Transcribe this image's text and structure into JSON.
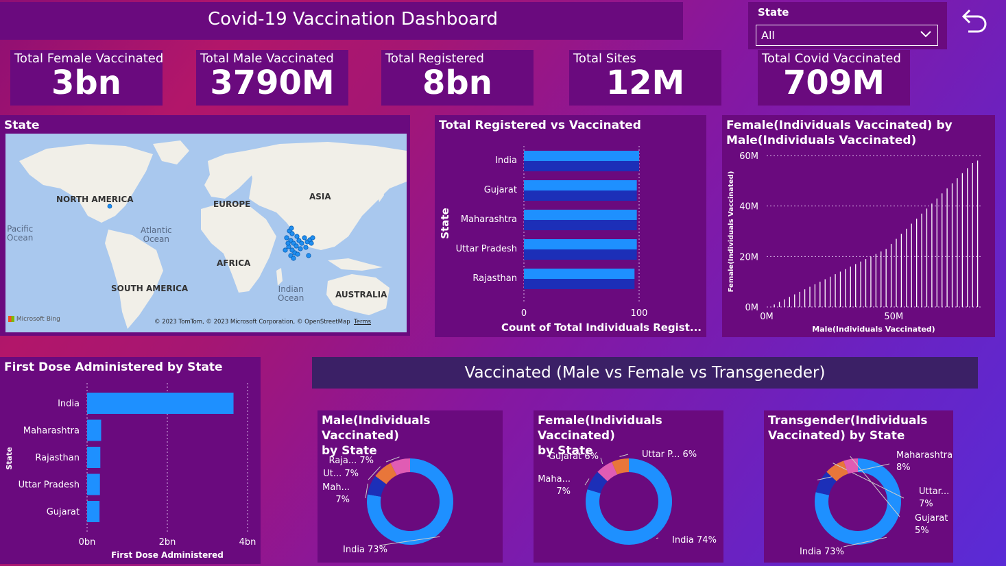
{
  "header": {
    "title": "Covid-19 Vaccination Dashboard"
  },
  "slicer": {
    "label": "State",
    "value": "All"
  },
  "kpis": [
    {
      "label": "Total Female Vaccinated",
      "value": "3bn"
    },
    {
      "label": "Total Male Vaccinated",
      "value": "3790M"
    },
    {
      "label": "Total Registered",
      "value": "8bn"
    },
    {
      "label": "Total Sites",
      "value": "12M"
    },
    {
      "label": "Total Covid Vaccinated",
      "value": "709M"
    }
  ],
  "map": {
    "title": "State",
    "labels": {
      "north_america": "NORTH AMERICA",
      "europe": "EUROPE",
      "asia": "ASIA",
      "africa": "AFRICA",
      "south_america": "SOUTH AMERICA",
      "australia": "AUSTRALIA"
    },
    "oceans": {
      "pacific_1": "Pacific",
      "pacific_2": "Ocean",
      "atlantic_1": "Atlantic",
      "atlantic_2": "Ocean",
      "indian_1": "Indian",
      "indian_2": "Ocean"
    },
    "brand": "Microsoft Bing",
    "copyright": "© 2023 TomTom, © 2023 Microsoft Corporation, © OpenStreetMap",
    "terms": "Terms",
    "colors": {
      "water": "#a9c8ee",
      "land": "#f1efe8",
      "marker": "#1f8ef0"
    }
  },
  "chart_data": [
    {
      "id": "registered_vs_vaccinated",
      "type": "bar",
      "orientation": "horizontal",
      "title": "Total Registered vs Vaccinated",
      "ylabel": "State",
      "xlabel": "Count of Total Individuals Regist...",
      "categories": [
        "India",
        "Gujarat",
        "Maharashtra",
        "Uttar Pradesh",
        "Rajasthan"
      ],
      "series": [
        {
          "values": [
            100,
            98,
            98,
            98,
            96
          ],
          "color": "#1e90ff"
        },
        {
          "values": [
            100,
            98,
            98,
            98,
            96
          ],
          "color": "#1c2fb8"
        }
      ],
      "xlim": [
        0,
        100
      ],
      "xticks": [
        "0",
        "100"
      ]
    },
    {
      "id": "female_by_male",
      "type": "scatter",
      "title_line1": "Female(Individuals Vaccinated) by",
      "title_line2": "Male(Individuals Vaccinated)",
      "xlabel": "Male(Individuals Vaccinated)",
      "ylabel": "Female(Individuals Vaccinated)",
      "xticks": [
        "0M",
        "50M"
      ],
      "yticks": [
        "0M",
        "20M",
        "40M",
        "60M"
      ],
      "xlim": [
        0,
        85
      ],
      "ylim": [
        0,
        60
      ],
      "x": [
        3,
        5,
        7,
        9,
        11,
        13,
        15,
        17,
        19,
        21,
        23,
        25,
        27,
        29,
        31,
        33,
        35,
        37,
        39,
        41,
        43,
        45,
        47,
        49,
        51,
        53,
        55,
        57,
        59,
        61,
        63,
        65,
        67,
        69,
        71,
        73,
        75,
        77,
        79,
        81,
        83
      ],
      "y": [
        1,
        2,
        3,
        4,
        5,
        6,
        7,
        8,
        9,
        10,
        11,
        12,
        13,
        14,
        15,
        16,
        17,
        18,
        19,
        20,
        21,
        22,
        23,
        25,
        27,
        29,
        31,
        33,
        35,
        37,
        39,
        41,
        43,
        45,
        47,
        49,
        51,
        53,
        55,
        57,
        58
      ]
    },
    {
      "id": "first_dose_by_state",
      "type": "bar",
      "orientation": "horizontal",
      "title": "First Dose Administered by State",
      "ylabel": "State",
      "xlabel": "First Dose Administered",
      "categories": [
        "India",
        "Maharashtra",
        "Rajasthan",
        "Uttar Pradesh",
        "Gujarat"
      ],
      "values": [
        3.65,
        0.35,
        0.33,
        0.32,
        0.31
      ],
      "units": "bn",
      "xlim": [
        0,
        4
      ],
      "xticks": [
        "0bn",
        "2bn",
        "4bn"
      ],
      "color": "#1e90ff"
    },
    {
      "id": "male_by_state",
      "type": "pie",
      "donut": true,
      "title_line1": "Male(Individuals Vaccinated)",
      "title_line2": "by State",
      "slices": [
        {
          "label": "India 73%",
          "value": 73,
          "color": "#1e90ff"
        },
        {
          "label": "Mah... 7%",
          "value": 7,
          "color": "#1c2fb8"
        },
        {
          "label": "Ut... 7%",
          "value": 7,
          "color": "#e8763a"
        },
        {
          "label": "Raja... 7%",
          "value": 7,
          "color": "#e05cb4"
        }
      ]
    },
    {
      "id": "female_by_state",
      "type": "pie",
      "donut": true,
      "title_line1": "Female(Individuals Vaccinated)",
      "title_line2": "by State",
      "slices": [
        {
          "label": "India 74%",
          "value": 74,
          "color": "#1e90ff"
        },
        {
          "label": "Maha... 7%",
          "value": 7,
          "color": "#1c2fb8"
        },
        {
          "label": "Gujarat 6%",
          "value": 6,
          "color": "#e05cb4"
        },
        {
          "label": "Uttar P... 6%",
          "value": 6,
          "color": "#e8763a"
        }
      ]
    },
    {
      "id": "transgender_by_state",
      "type": "pie",
      "donut": true,
      "title_line1": "Transgender(Individuals",
      "title_line2": "Vaccinated) by State",
      "slices": [
        {
          "label": "India 73%",
          "value": 73,
          "color": "#1e90ff"
        },
        {
          "label": "Maharashtra 8%",
          "value": 8,
          "color": "#1c2fb8"
        },
        {
          "label": "Uttar... 7%",
          "value": 7,
          "color": "#e8763a"
        },
        {
          "label": "Gujarat 5%",
          "value": 5,
          "color": "#e05cb4"
        }
      ]
    }
  ],
  "section_banner": {
    "title": "Vaccinated (Male vs Female vs Transgeneder)"
  }
}
